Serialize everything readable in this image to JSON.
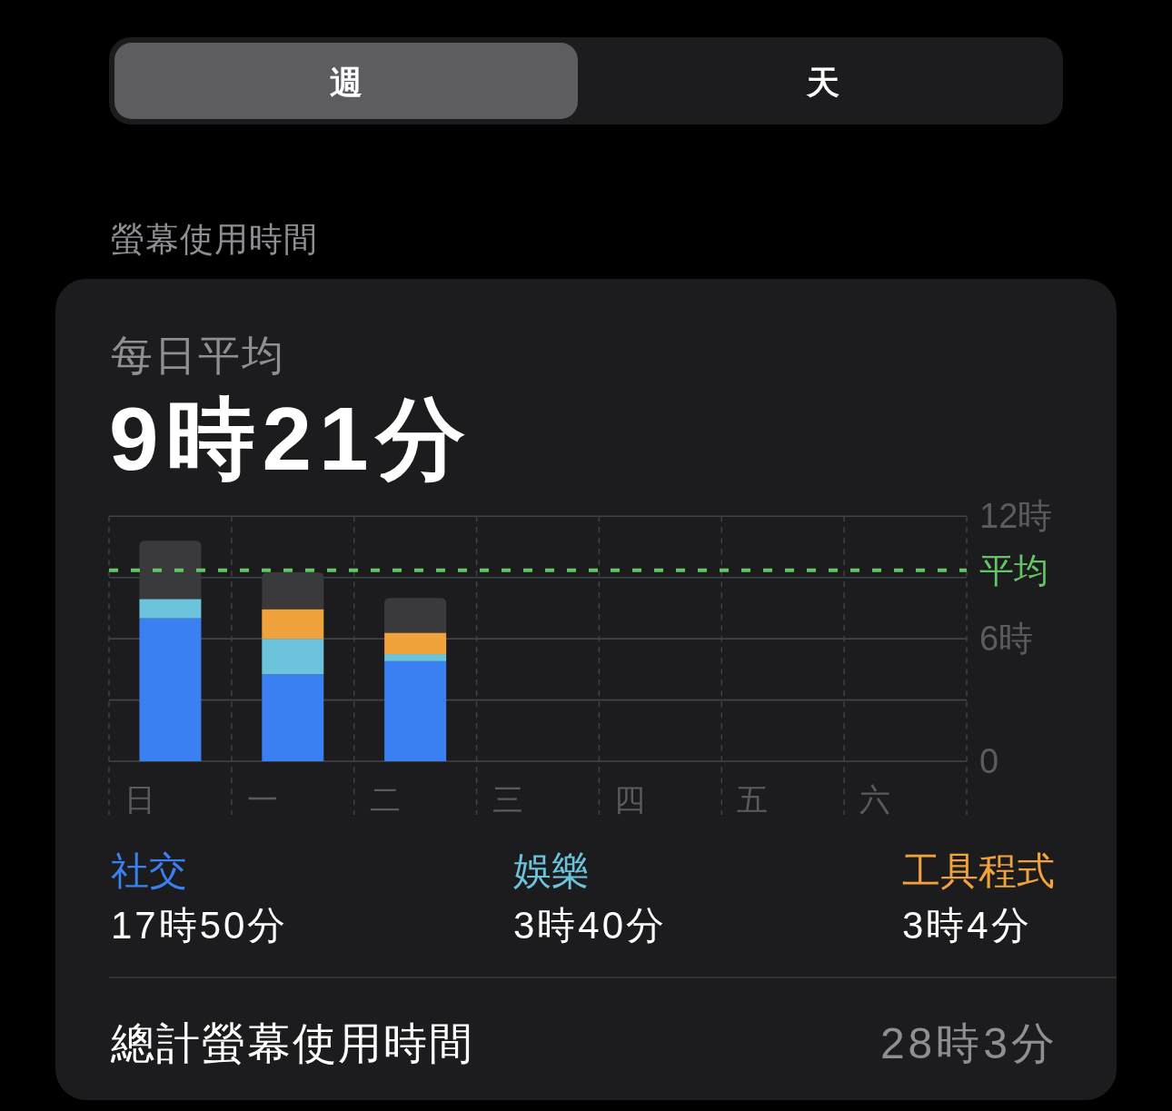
{
  "chart_data": {
    "type": "bar",
    "stacked": true,
    "title": "每日平均",
    "subtitle": "9時21分",
    "categories": [
      "日",
      "一",
      "二",
      "三",
      "四",
      "五",
      "六"
    ],
    "series": [
      {
        "name": "社交",
        "color": "#3a80f2",
        "values": [
          7.0,
          4.25,
          4.9,
          null,
          null,
          null,
          null
        ]
      },
      {
        "name": "娛樂",
        "color": "#6bc4dc",
        "values": [
          0.95,
          1.75,
          0.35,
          null,
          null,
          null,
          null
        ]
      },
      {
        "name": "工具程式",
        "color": "#f0a33d",
        "values": [
          null,
          1.45,
          1.05,
          null,
          null,
          null,
          null
        ]
      },
      {
        "color": "#3a3a3c",
        "values": [
          2.85,
          1.8,
          1.7,
          null,
          null,
          null,
          null
        ]
      }
    ],
    "ylim": [
      0,
      12
    ],
    "yticks": [
      0,
      {
        "value": 3,
        "label": null
      },
      {
        "value": 6,
        "label": "6時"
      },
      {
        "value": 9,
        "label": null
      },
      {
        "value": 12,
        "label": "12時"
      }
    ],
    "grid": true,
    "ref_lines": [
      {
        "axis": "y",
        "value": 9.35,
        "label": "平均",
        "color": "#65c466",
        "line_style": "dashed"
      }
    ],
    "legend": "bottom",
    "annotations": [
      "週",
      "天",
      "螢幕使用時間",
      "17時50分",
      "3時40分",
      "3時4分",
      "總計螢幕使用時間",
      "28時3分"
    ]
  }
}
